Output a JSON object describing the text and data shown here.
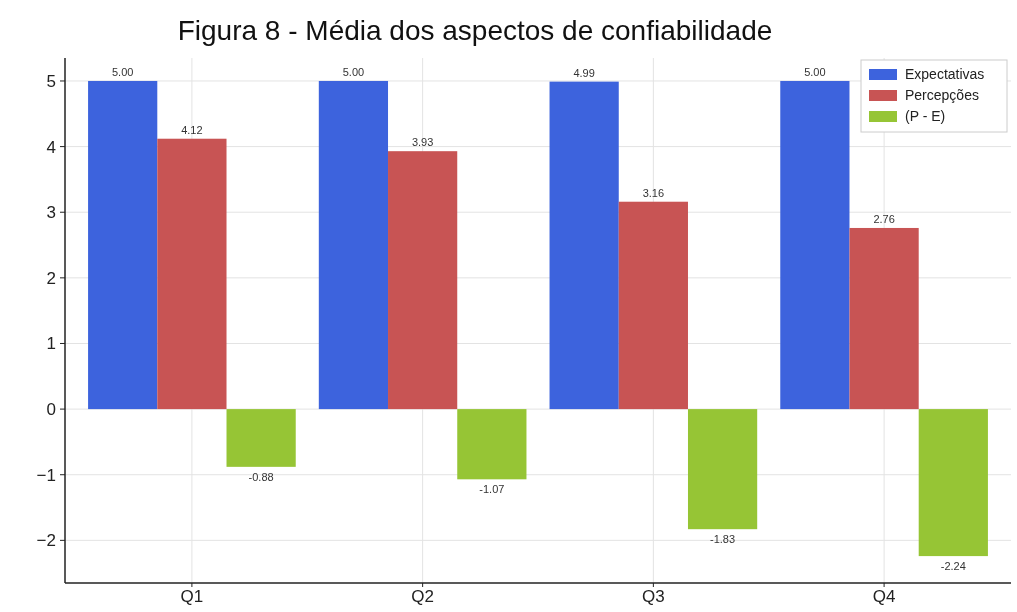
{
  "chart_data": {
    "type": "bar",
    "title": "Figura 8 - Média dos aspectos de confiabilidade",
    "categories": [
      "Q1",
      "Q2",
      "Q3",
      "Q4"
    ],
    "series": [
      {
        "name": "Expectativas",
        "color": "#3d63dd",
        "values": [
          5.0,
          5.0,
          4.99,
          5.0
        ],
        "value_labels": [
          "5.00",
          "5.00",
          "4.99",
          "5.00"
        ]
      },
      {
        "name": "Percepções",
        "color": "#c85454",
        "values": [
          4.12,
          3.93,
          3.16,
          2.76
        ],
        "value_labels": [
          "4.12",
          "3.93",
          "3.16",
          "2.76"
        ]
      },
      {
        "name": "(P - E)",
        "color": "#96c535",
        "values": [
          -0.88,
          -1.07,
          -1.83,
          -2.24
        ],
        "value_labels": [
          "-0.88",
          "-1.07",
          "-1.83",
          "-2.24"
        ]
      }
    ],
    "ylim": [
      -2.65,
      5.35
    ],
    "yticks": [
      {
        "value": -2,
        "label": "−2"
      },
      {
        "value": -1,
        "label": "−1"
      },
      0,
      1,
      2,
      3,
      4,
      5
    ],
    "grid": true,
    "legend": "top right"
  }
}
